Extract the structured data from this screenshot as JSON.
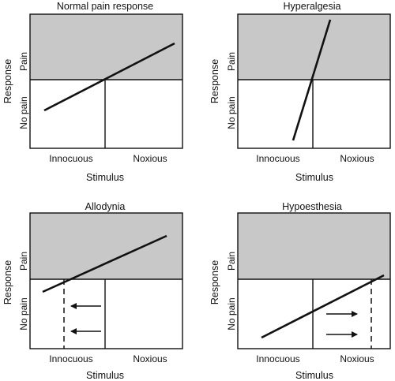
{
  "colors": {
    "pain_region": "#c8c8c8",
    "stroke": "#111111",
    "background": "#ffffff"
  },
  "panels": [
    {
      "id": "normal",
      "title": "Normal pain response",
      "x_label": "Stimulus",
      "y_label": "Response",
      "y_tick_top": "Pain",
      "y_tick_bottom": "No pain",
      "x_tick_left": "Innocuous",
      "x_tick_right": "Noxious"
    },
    {
      "id": "hyperalgesia",
      "title": "Hyperalgesia",
      "x_label": "Stimulus",
      "y_label": "Response",
      "y_tick_top": "Pain",
      "y_tick_bottom": "No pain",
      "x_tick_left": "Innocuous",
      "x_tick_right": "Noxious"
    },
    {
      "id": "allodynia",
      "title": "Allodynia",
      "x_label": "Stimulus",
      "y_label": "Response",
      "y_tick_top": "Pain",
      "y_tick_bottom": "No pain",
      "x_tick_left": "Innocuous",
      "x_tick_right": "Noxious"
    },
    {
      "id": "hypoesthesia",
      "title": "Hypoesthesia",
      "x_label": "Stimulus",
      "y_label": "Response",
      "y_tick_top": "Pain",
      "y_tick_bottom": "No pain",
      "x_tick_left": "Innocuous",
      "x_tick_right": "Noxious"
    }
  ]
}
